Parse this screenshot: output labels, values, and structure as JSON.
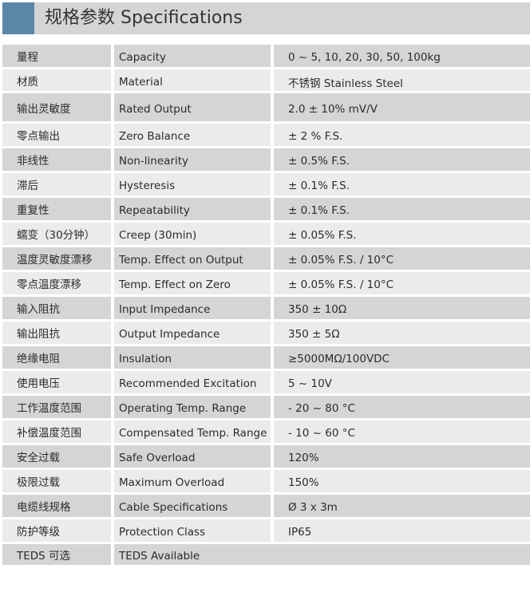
{
  "header": {
    "title": "规格参数 Specifications",
    "accent_color": "#5b87a6"
  },
  "rows": [
    {
      "cn": "量程",
      "en": "Capacity",
      "value": "0 ~ 5, 10, 20, 30, 50, 100kg"
    },
    {
      "cn": "材质",
      "en": "Material",
      "value": "不锈钢 Stainless Steel"
    },
    {
      "cn": "输出灵敏度",
      "en": "Rated Output",
      "value": "2.0 ± 10% mV/V"
    },
    {
      "cn": "零点输出",
      "en": "Zero Balance",
      "value": "± 2 % F.S."
    },
    {
      "cn": "非线性",
      "en": "Non-linearity",
      "value": "± 0.5% F.S."
    },
    {
      "cn": "滞后",
      "en": "Hysteresis",
      "value": "± 0.1% F.S."
    },
    {
      "cn": "重复性",
      "en": "Repeatability",
      "value": "± 0.1% F.S."
    },
    {
      "cn": "蠕变（30分钟）",
      "en": "Creep (30min)",
      "value": "± 0.05% F.S."
    },
    {
      "cn": "温度灵敏度漂移",
      "en": "Temp. Effect on Output",
      "value": "± 0.05% F.S. / 10°C"
    },
    {
      "cn": "零点温度漂移",
      "en": "Temp. Effect on Zero",
      "value": "± 0.05% F.S. / 10°C"
    },
    {
      "cn": "输入阻抗",
      "en": "Input Impedance",
      "value": "350 ± 10Ω"
    },
    {
      "cn": "输出阻抗",
      "en": "Output Impedance",
      "value": "350 ± 5Ω"
    },
    {
      "cn": "绝缘电阻",
      "en": "Insulation",
      "value": "≥5000MΩ/100VDC"
    },
    {
      "cn": "使用电压",
      "en": "Recommended Excitation",
      "value": "5 ~ 10V"
    },
    {
      "cn": "工作温度范围",
      "en": "Operating Temp. Range",
      "value": "- 20 ~ 80 °C"
    },
    {
      "cn": "补偿温度范围",
      "en": "Compensated Temp. Range",
      "value": "- 10 ~ 60 °C"
    },
    {
      "cn": "安全过载",
      "en": "Safe Overload",
      "value": "120%"
    },
    {
      "cn": "极限过载",
      "en": "Maximum Overload",
      "value": "150%"
    },
    {
      "cn": "电缆线规格",
      "en": "Cable Specifications",
      "value": "Ø 3 x 3m"
    },
    {
      "cn": "防护等级",
      "en": "Protection Class",
      "value": "IP65"
    },
    {
      "cn": "TEDS 可选",
      "en": "TEDS Available"
    }
  ]
}
